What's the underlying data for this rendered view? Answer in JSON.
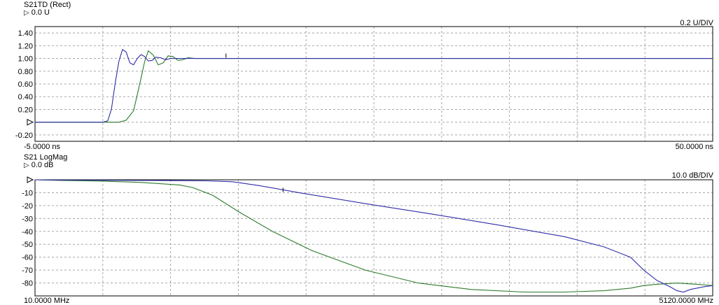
{
  "chart_data": [
    {
      "type": "line",
      "title": "S21TD (Rect)",
      "reference": {
        "label": "0.0 U",
        "value": 0.0
      },
      "scale": "0.2 U/DIV",
      "x_start": "-5.0000 ns",
      "x_end": "50.0000 ns",
      "xlim": [
        -5,
        50
      ],
      "ylim": [
        -0.3,
        1.5
      ],
      "yticks": [
        "1.40",
        "1.20",
        "1.00",
        "0.80",
        "0.60",
        "0.40",
        "0.20",
        "",
        "-0.20"
      ],
      "ytick_values": [
        1.4,
        1.2,
        1.0,
        0.8,
        0.6,
        0.4,
        0.2,
        0.0,
        -0.2
      ],
      "grid": true,
      "marker_x": 10.5,
      "series": [
        {
          "color": "#2e2ea6",
          "points": [
            [
              -5,
              0
            ],
            [
              0.5,
              0
            ],
            [
              0.9,
              0.02
            ],
            [
              1.2,
              0.2
            ],
            [
              1.5,
              0.6
            ],
            [
              1.8,
              0.95
            ],
            [
              2.1,
              1.14
            ],
            [
              2.4,
              1.1
            ],
            [
              2.7,
              0.93
            ],
            [
              3.0,
              0.9
            ],
            [
              3.3,
              1.0
            ],
            [
              3.6,
              1.06
            ],
            [
              3.9,
              1.03
            ],
            [
              4.2,
              0.96
            ],
            [
              4.5,
              0.97
            ],
            [
              4.8,
              1.02
            ],
            [
              5.2,
              1.01
            ],
            [
              5.6,
              0.98
            ],
            [
              6.0,
              1.0
            ],
            [
              7,
              1.0
            ],
            [
              10,
              1.0
            ],
            [
              50,
              1.0
            ]
          ]
        },
        {
          "color": "#2b7a2b",
          "points": [
            [
              -5,
              0
            ],
            [
              1.8,
              0
            ],
            [
              2.4,
              0.03
            ],
            [
              3.0,
              0.18
            ],
            [
              3.5,
              0.6
            ],
            [
              3.9,
              0.95
            ],
            [
              4.2,
              1.12
            ],
            [
              4.6,
              1.05
            ],
            [
              5.0,
              0.9
            ],
            [
              5.4,
              0.93
            ],
            [
              5.8,
              1.04
            ],
            [
              6.2,
              1.03
            ],
            [
              6.6,
              0.97
            ],
            [
              7.0,
              0.98
            ],
            [
              7.4,
              1.01
            ],
            [
              8.0,
              1.0
            ],
            [
              10,
              1.0
            ],
            [
              50,
              1.0
            ]
          ]
        }
      ]
    },
    {
      "type": "line",
      "title": "S21 LogMag",
      "reference": {
        "label": "0.0 dB",
        "value": 0.0
      },
      "scale": "10.0 dB/DIV",
      "x_start": "10.0000 MHz",
      "x_end": "5120.0000 MHz",
      "xlim": [
        10,
        5120
      ],
      "ylim": [
        -90,
        0
      ],
      "yticks": [
        "",
        "-10",
        "-20",
        "-30",
        "-40",
        "-50",
        "-60",
        "-70",
        "-80"
      ],
      "ytick_values": [
        0,
        -10,
        -20,
        -30,
        -40,
        -50,
        -60,
        -70,
        -80
      ],
      "grid": true,
      "marker_x": 1880,
      "series": [
        {
          "color": "#2e2ea6",
          "points": [
            [
              10,
              0
            ],
            [
              200,
              -0.2
            ],
            [
              500,
              -0.4
            ],
            [
              1000,
              -0.6
            ],
            [
              1300,
              -0.8
            ],
            [
              1500,
              -1.5
            ],
            [
              1700,
              -4.5
            ],
            [
              2000,
              -10
            ],
            [
              2500,
              -18.5
            ],
            [
              3000,
              -26.5
            ],
            [
              3500,
              -35
            ],
            [
              4000,
              -44
            ],
            [
              4300,
              -52
            ],
            [
              4500,
              -60
            ],
            [
              4600,
              -70
            ],
            [
              4700,
              -78
            ],
            [
              4800,
              -83
            ],
            [
              4850,
              -86
            ],
            [
              4900,
              -87
            ],
            [
              4950,
              -85
            ],
            [
              5000,
              -84
            ],
            [
              5050,
              -83
            ],
            [
              5120,
              -82
            ]
          ]
        },
        {
          "color": "#2b7a2b",
          "points": [
            [
              10,
              0
            ],
            [
              200,
              -0.5
            ],
            [
              500,
              -1
            ],
            [
              800,
              -2
            ],
            [
              1100,
              -4
            ],
            [
              1200,
              -6
            ],
            [
              1350,
              -12
            ],
            [
              1550,
              -25
            ],
            [
              1800,
              -40
            ],
            [
              2100,
              -55
            ],
            [
              2500,
              -70
            ],
            [
              2900,
              -80
            ],
            [
              3300,
              -85
            ],
            [
              3700,
              -87
            ],
            [
              4000,
              -87
            ],
            [
              4300,
              -86
            ],
            [
              4500,
              -84
            ],
            [
              4600,
              -82
            ],
            [
              4700,
              -81
            ],
            [
              4850,
              -80
            ],
            [
              5000,
              -81
            ],
            [
              5120,
              -82
            ]
          ]
        }
      ]
    }
  ]
}
